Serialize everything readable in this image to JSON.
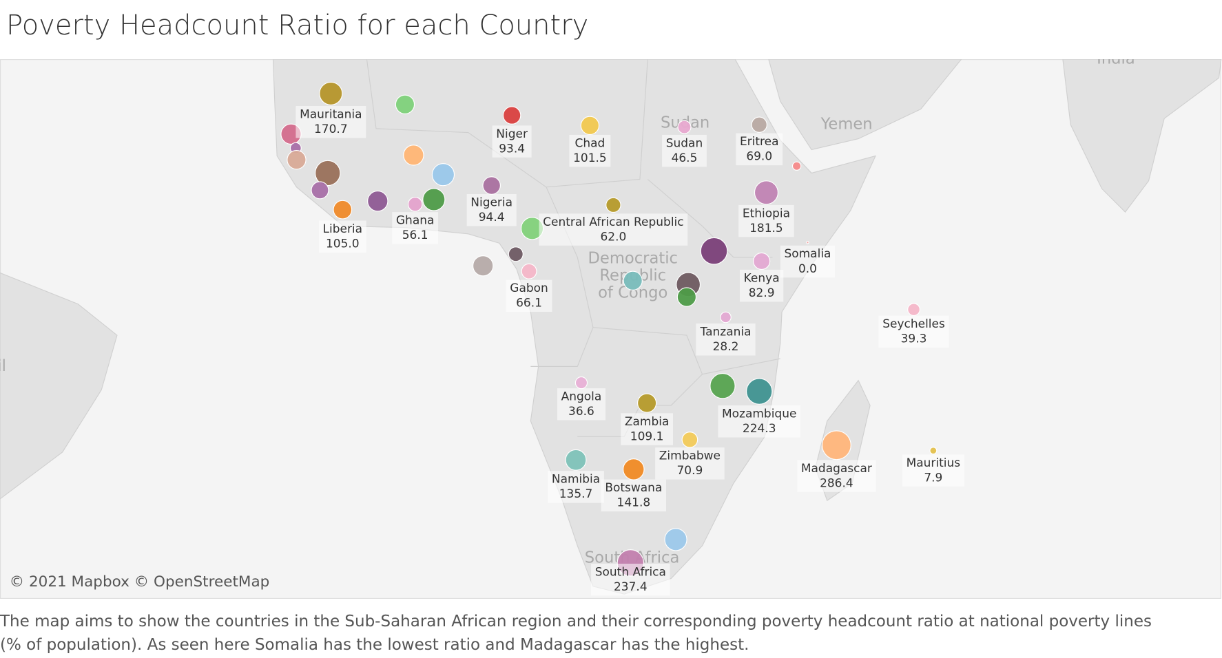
{
  "chart_data": {
    "type": "bubble-map",
    "title": "Poverty Headcount Ratio for each Country",
    "caption": "The map aims to show the countries in the Sub-Saharan African region and their corresponding poverty headcount ratio at national poverty lines (% of population). As seen here Somalia has the lowest ratio and Madagascar has the highest.",
    "attribution": "© 2021 Mapbox © OpenStreetMap",
    "map_labels": [
      "Yemen",
      "Democratic",
      "Republic",
      "of Congo",
      "Sudan",
      "South Africa",
      "India",
      "Brazil"
    ],
    "categories": [
      "Mauritania",
      "Niger",
      "Chad",
      "Sudan",
      "Eritrea",
      "Ethiopia",
      "Nigeria",
      "Central African Republic",
      "Liberia",
      "Ghana",
      "Somalia",
      "Kenya",
      "Gabon",
      "Tanzania",
      "Seychelles",
      "Angola",
      "Zambia",
      "Mozambique",
      "Zimbabwe",
      "Madagascar",
      "Mauritius",
      "Namibia",
      "Botswana",
      "South Africa",
      null,
      null,
      null,
      null,
      null,
      null,
      null,
      null,
      null,
      null,
      null,
      null,
      null,
      null,
      null,
      null,
      null,
      null,
      null,
      null
    ],
    "values": [
      170.7,
      93.4,
      101.5,
      46.5,
      69.0,
      181.5,
      94.4,
      62.0,
      105.0,
      56.1,
      0.0,
      82.9,
      66.1,
      28.2,
      39.3,
      36.6,
      109.1,
      224.3,
      70.9,
      286.4,
      7.9,
      135.7,
      141.8,
      237.4,
      110,
      130,
      30,
      110,
      210,
      90,
      130,
      130,
      160,
      160,
      160,
      60,
      130,
      15,
      240,
      110,
      190,
      110,
      210,
      160
    ],
    "value_labels": [
      "170.7",
      "93.4",
      "101.5",
      "46.5",
      "69.0",
      "181.5",
      "94.4",
      "62.0",
      "105.0",
      "56.1",
      "0.0",
      "82.9",
      "66.1",
      "28.2",
      "39.3",
      "36.6",
      "109.1",
      "224.3",
      "70.9",
      "286.4",
      "7.9",
      "135.7",
      "141.8",
      "237.4",
      null,
      null,
      null,
      null,
      null,
      null,
      null,
      null,
      null,
      null,
      null,
      null,
      null,
      null,
      null,
      null,
      null,
      null,
      null,
      null
    ],
    "colors": [
      "#b5952a",
      "#d9403f",
      "#f1c84f",
      "#e8a9d0",
      "#b8a9a2",
      "#c083b3",
      "#a9709f",
      "#b59a2a",
      "#ef8a2a",
      "#e4a2cc",
      "#f2a0a0",
      "#e3a8d2",
      "#f4b6c8",
      "#e3a8d2",
      "#f4b6c8",
      "#e8b0d6",
      "#b59a2a",
      "#3f9290",
      "#f2ca5a",
      "#ffb57a",
      "#e3c04c",
      "#7ec2b8",
      "#f08a24",
      "#c27fae",
      "#7ed17a",
      "#d36b8c",
      "#a86fa8",
      "#d8aa97",
      "#99705a",
      "#a86fa8",
      "#8e5a94",
      "#ffb574",
      "#99c7ea",
      "#4e9b48",
      "#82d17a",
      "#6e5a63",
      "#b5aaa8",
      "#f58a8a",
      "#7a3f78",
      "#78bcbb",
      "#6e5a60",
      "#4e9b48",
      "#56a34f",
      "#9cc8ea"
    ]
  }
}
